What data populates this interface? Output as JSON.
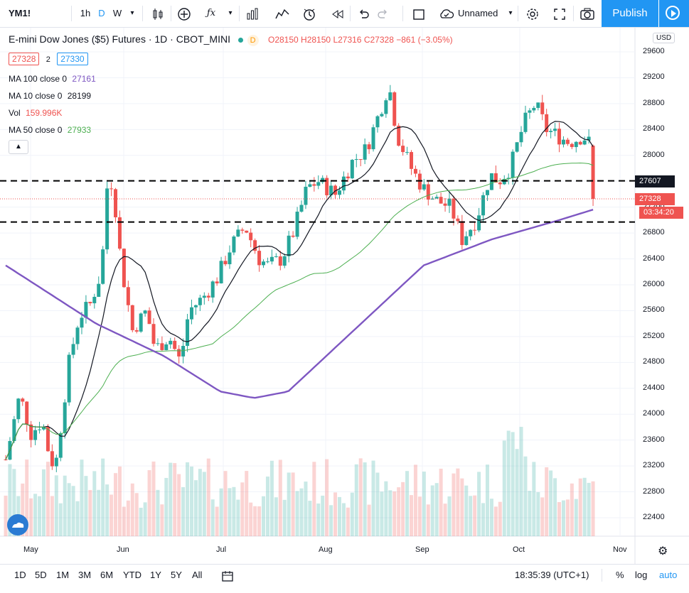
{
  "toolbar": {
    "symbol": "YM1!",
    "interval_1h": "1h",
    "interval_d": "D",
    "interval_w": "W",
    "layout_name": "Unnamed",
    "publish_label": "Publish"
  },
  "header": {
    "title": "E-mini Dow Jones ($5) Futures · 1D · CBOT_MINI",
    "badge": "D",
    "ohlc_o": "O28150",
    "ohlc_h": "H28150",
    "ohlc_l": "L27316",
    "ohlc_c": "C27328",
    "change": "−861 (−3.05%)",
    "bid": "27328",
    "spread": "2",
    "ask": "27330"
  },
  "indicators": [
    {
      "label": "MA 100 close 0",
      "value": "27161",
      "color": "#7e57c2"
    },
    {
      "label": "MA 10 close 0",
      "value": "28199",
      "color": "#131722"
    },
    {
      "label": "Vol",
      "value": "159.996K",
      "color": "#ef5350"
    },
    {
      "label": "MA 50 close 0",
      "value": "27933",
      "color": "#4caf50"
    }
  ],
  "price_axis": {
    "currency": "USD",
    "ticks": [
      "29600",
      "29200",
      "28800",
      "28400",
      "28000",
      "27600",
      "27200",
      "26800",
      "26400",
      "26000",
      "25600",
      "25200",
      "24800",
      "24400",
      "24000",
      "23600",
      "23200",
      "22800",
      "22400"
    ],
    "line_level_label": "27607",
    "last_price_label": "27328",
    "countdown": "03:34:20"
  },
  "time_axis": {
    "ticks": [
      "May",
      "Jun",
      "Jul",
      "Aug",
      "Sep",
      "Oct",
      "Nov"
    ]
  },
  "bottom": {
    "ranges": [
      "1D",
      "5D",
      "1M",
      "3M",
      "6M",
      "YTD",
      "1Y",
      "5Y",
      "All"
    ],
    "clock": "18:35:39 (UTC+1)",
    "percent": "%",
    "log": "log",
    "auto": "auto"
  },
  "colors": {
    "up": "#26a69a",
    "down": "#ef5350",
    "accent": "#2196f3"
  },
  "chart_data": {
    "type": "candlestick",
    "ylim": [
      22000,
      29800
    ],
    "horizontal_lines": [
      27607,
      26970
    ],
    "series": [
      {
        "name": "MA 100 close 0",
        "last": 27161
      },
      {
        "name": "MA 10 close 0",
        "last": 28199
      },
      {
        "name": "MA 50 close 0",
        "last": 27933
      }
    ],
    "last": {
      "open": 28150,
      "high": 28150,
      "low": 27316,
      "close": 27328
    }
  }
}
